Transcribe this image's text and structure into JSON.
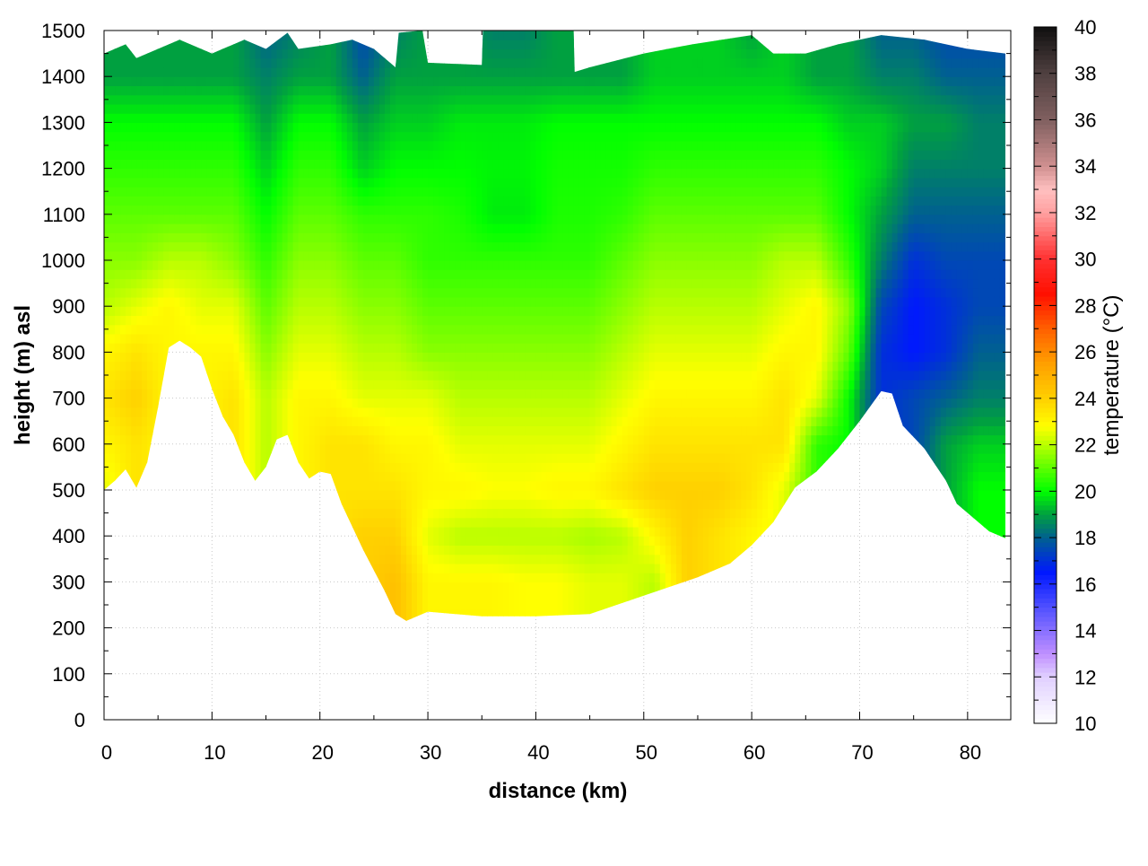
{
  "chart_data": {
    "type": "heatmap",
    "title": "",
    "xlabel": "distance (km)",
    "ylabel": "height (m) asl",
    "colorbar_label": "temperature (°C)",
    "xlim": [
      0,
      84
    ],
    "ylim": [
      0,
      1500
    ],
    "clim": [
      10,
      40
    ],
    "xticks": [
      0,
      10,
      20,
      30,
      40,
      50,
      60,
      70,
      80
    ],
    "yticks": [
      0,
      100,
      200,
      300,
      400,
      500,
      600,
      700,
      800,
      900,
      1000,
      1100,
      1200,
      1300,
      1400,
      1500
    ],
    "cticks": [
      10,
      12,
      14,
      16,
      18,
      20,
      22,
      24,
      26,
      28,
      30,
      32,
      34,
      36,
      38,
      40
    ],
    "grid": true,
    "colormap": [
      [
        10,
        "#ffffff"
      ],
      [
        12,
        "#e0d0ff"
      ],
      [
        13,
        "#c090ff"
      ],
      [
        15,
        "#5050ff"
      ],
      [
        16.5,
        "#0018ff"
      ],
      [
        18,
        "#006090"
      ],
      [
        19,
        "#00a040"
      ],
      [
        20,
        "#00ff00"
      ],
      [
        22,
        "#b8ff00"
      ],
      [
        22.8,
        "#ffff00"
      ],
      [
        24,
        "#ffd000"
      ],
      [
        25.5,
        "#ffa000"
      ],
      [
        27,
        "#ff6000"
      ],
      [
        28.5,
        "#ff1000"
      ],
      [
        30,
        "#ff3030"
      ],
      [
        32,
        "#ffa0a0"
      ],
      [
        33,
        "#ffc0c0"
      ],
      [
        34,
        "#d09090"
      ],
      [
        36,
        "#806060"
      ],
      [
        38,
        "#504040"
      ],
      [
        40,
        "#101010"
      ]
    ],
    "heights": [
      0,
      100,
      200,
      300,
      400,
      500,
      600,
      700,
      800,
      900,
      1000,
      1100,
      1200,
      1300,
      1400,
      1500
    ],
    "columns": [
      {
        "x": 0,
        "t": [
          null,
          null,
          null,
          null,
          null,
          22.5,
          23,
          23.5,
          23,
          22,
          21.5,
          21,
          20.5,
          20,
          19,
          null
        ]
      },
      {
        "x": 3,
        "t": [
          null,
          null,
          null,
          null,
          null,
          null,
          23.5,
          24,
          23.5,
          22.5,
          21.5,
          21,
          20.5,
          20,
          19,
          null
        ]
      },
      {
        "x": 6,
        "t": [
          null,
          null,
          null,
          null,
          null,
          null,
          null,
          null,
          null,
          23,
          22,
          21,
          20.5,
          20,
          19,
          null
        ]
      },
      {
        "x": 9,
        "t": [
          null,
          null,
          null,
          null,
          null,
          null,
          null,
          null,
          23,
          22.5,
          22,
          21,
          20.5,
          20,
          19,
          null
        ]
      },
      {
        "x": 12,
        "t": [
          null,
          null,
          null,
          null,
          null,
          null,
          null,
          23.5,
          23,
          22.5,
          21.5,
          21,
          20.5,
          20,
          19,
          null
        ]
      },
      {
        "x": 15,
        "t": [
          null,
          null,
          null,
          null,
          null,
          null,
          22,
          22,
          21.5,
          21,
          20.5,
          20,
          19.5,
          19,
          18.5,
          18
        ]
      },
      {
        "x": 18,
        "t": [
          null,
          null,
          null,
          null,
          null,
          null,
          23,
          23,
          22.5,
          22,
          21.5,
          21,
          20.5,
          20,
          19,
          18.5
        ]
      },
      {
        "x": 21,
        "t": [
          null,
          null,
          null,
          null,
          null,
          null,
          23.5,
          23,
          22.5,
          22,
          21.5,
          21,
          20.5,
          20,
          19,
          null
        ]
      },
      {
        "x": 24,
        "t": [
          null,
          null,
          null,
          null,
          24,
          23.5,
          23.5,
          22.5,
          22,
          21.5,
          21,
          20.5,
          19.5,
          19,
          18,
          17.5
        ]
      },
      {
        "x": 27,
        "t": [
          null,
          null,
          null,
          24.5,
          24,
          23.5,
          23,
          22.5,
          22,
          21.5,
          21,
          20.5,
          20,
          19.5,
          19,
          18.5
        ]
      },
      {
        "x": 30,
        "t": [
          null,
          null,
          null,
          23,
          22.5,
          23,
          23,
          22.5,
          21.5,
          21,
          20.5,
          20.5,
          20,
          19.5,
          19,
          null
        ]
      },
      {
        "x": 33,
        "t": [
          null,
          null,
          null,
          23,
          22,
          23,
          22.5,
          22,
          21.5,
          21,
          20.5,
          20.3,
          20,
          19.8,
          19,
          null
        ]
      },
      {
        "x": 36,
        "t": [
          null,
          null,
          null,
          23,
          22,
          22.8,
          22.5,
          22,
          21.5,
          21,
          20.5,
          19.8,
          19.9,
          19.8,
          19,
          18.5
        ]
      },
      {
        "x": 39,
        "t": [
          null,
          null,
          null,
          22.8,
          22,
          22.8,
          22.5,
          22,
          21.5,
          21,
          20.5,
          19.8,
          19.9,
          19.8,
          19,
          18.5
        ]
      },
      {
        "x": 42,
        "t": [
          null,
          null,
          null,
          22.8,
          22,
          23,
          22.5,
          22,
          21.5,
          21,
          20.5,
          20.3,
          20.2,
          20,
          19,
          null
        ]
      },
      {
        "x": 45,
        "t": [
          null,
          null,
          null,
          22.5,
          21.8,
          23,
          22.5,
          22,
          21.5,
          21,
          20.5,
          20.3,
          20.2,
          20,
          19,
          null
        ]
      },
      {
        "x": 48,
        "t": [
          null,
          null,
          null,
          22.5,
          22,
          23.5,
          23,
          22.5,
          22,
          21.5,
          21,
          20.5,
          20.2,
          20,
          19,
          null
        ]
      },
      {
        "x": 51,
        "t": [
          null,
          null,
          null,
          22,
          23,
          24,
          23.5,
          23,
          22.5,
          22,
          21.5,
          21,
          20.5,
          20,
          19.5,
          null
        ]
      },
      {
        "x": 54,
        "t": [
          null,
          null,
          null,
          null,
          24,
          24,
          23.5,
          23,
          22.5,
          22,
          21.5,
          21,
          20.5,
          20,
          19.5,
          null
        ]
      },
      {
        "x": 57,
        "t": [
          null,
          null,
          null,
          null,
          23.5,
          24,
          23.5,
          23,
          22.5,
          22,
          21.5,
          21,
          20.5,
          20,
          19.5,
          null
        ]
      },
      {
        "x": 60,
        "t": [
          null,
          null,
          null,
          null,
          23,
          23.5,
          23.5,
          23,
          22.5,
          22,
          21.5,
          21,
          20.5,
          20,
          19.5,
          19
        ]
      },
      {
        "x": 63,
        "t": [
          null,
          null,
          null,
          null,
          null,
          22.5,
          23.5,
          23.5,
          23,
          22.5,
          22,
          21,
          20.5,
          20,
          19.5,
          null
        ]
      },
      {
        "x": 66,
        "t": [
          null,
          null,
          null,
          null,
          null,
          null,
          20.5,
          22.5,
          23,
          23,
          22,
          21,
          20.5,
          20,
          19,
          null
        ]
      },
      {
        "x": 69,
        "t": [
          null,
          null,
          null,
          null,
          null,
          null,
          null,
          20,
          21,
          21.5,
          20.5,
          20,
          20,
          19.5,
          19,
          null
        ]
      },
      {
        "x": 72,
        "t": [
          null,
          null,
          null,
          null,
          null,
          null,
          null,
          null,
          17,
          17.5,
          18.5,
          19,
          19.5,
          19.5,
          18.5,
          18
        ]
      },
      {
        "x": 75,
        "t": [
          null,
          null,
          null,
          null,
          null,
          null,
          null,
          17.5,
          16.5,
          16.5,
          17,
          18,
          18.5,
          19,
          18.5,
          18
        ]
      },
      {
        "x": 78,
        "t": [
          null,
          null,
          null,
          null,
          null,
          null,
          19,
          18,
          17,
          17,
          17.5,
          18,
          18.5,
          19,
          18,
          17.5
        ]
      },
      {
        "x": 81,
        "t": [
          null,
          null,
          null,
          null,
          null,
          20,
          19.5,
          18.5,
          18,
          17.5,
          17.5,
          18,
          18.5,
          18.5,
          18,
          17.5
        ]
      },
      {
        "x": 84,
        "t": [
          null,
          null,
          null,
          null,
          null,
          20,
          19.5,
          18.5,
          18,
          17.5,
          17.5,
          18,
          18.5,
          18.5,
          18,
          17.5
        ]
      }
    ],
    "terrain": [
      [
        0,
        500
      ],
      [
        1,
        520
      ],
      [
        2,
        545
      ],
      [
        3,
        505
      ],
      [
        4,
        560
      ],
      [
        5,
        680
      ],
      [
        6,
        810
      ],
      [
        7,
        825
      ],
      [
        8,
        810
      ],
      [
        9,
        790
      ],
      [
        10,
        720
      ],
      [
        11,
        660
      ],
      [
        12,
        620
      ],
      [
        13,
        560
      ],
      [
        14,
        520
      ],
      [
        15,
        550
      ],
      [
        16,
        610
      ],
      [
        17,
        620
      ],
      [
        18,
        560
      ],
      [
        19,
        525
      ],
      [
        20,
        540
      ],
      [
        21,
        535
      ],
      [
        22,
        470
      ],
      [
        24,
        370
      ],
      [
        26,
        280
      ],
      [
        27,
        230
      ],
      [
        28,
        215
      ],
      [
        30,
        235
      ],
      [
        35,
        225
      ],
      [
        40,
        225
      ],
      [
        45,
        230
      ],
      [
        50,
        270
      ],
      [
        55,
        310
      ],
      [
        58,
        340
      ],
      [
        60,
        380
      ],
      [
        62,
        430
      ],
      [
        64,
        505
      ],
      [
        66,
        540
      ],
      [
        68,
        590
      ],
      [
        70,
        650
      ],
      [
        72,
        715
      ],
      [
        73,
        710
      ],
      [
        74,
        640
      ],
      [
        76,
        590
      ],
      [
        78,
        520
      ],
      [
        79,
        470
      ],
      [
        81,
        430
      ],
      [
        82,
        410
      ],
      [
        83.5,
        395
      ]
    ],
    "data_top": [
      [
        0,
        1450
      ],
      [
        2,
        1470
      ],
      [
        3,
        1440
      ],
      [
        5,
        1460
      ],
      [
        7,
        1480
      ],
      [
        10,
        1450
      ],
      [
        13,
        1480
      ],
      [
        15,
        1460
      ],
      [
        17,
        1495
      ],
      [
        18,
        1460
      ],
      [
        21,
        1470
      ],
      [
        23,
        1480
      ],
      [
        25,
        1460
      ],
      [
        27,
        1420
      ],
      [
        27.3,
        1495
      ],
      [
        29.5,
        1500
      ],
      [
        30,
        1430
      ],
      [
        35,
        1425
      ],
      [
        35.1,
        1500
      ],
      [
        43.5,
        1500
      ],
      [
        43.6,
        1410
      ],
      [
        45,
        1420
      ],
      [
        50,
        1450
      ],
      [
        54.5,
        1470
      ],
      [
        60,
        1490
      ],
      [
        62,
        1450
      ],
      [
        65,
        1450
      ],
      [
        68,
        1470
      ],
      [
        72,
        1490
      ],
      [
        76,
        1480
      ],
      [
        80,
        1460
      ],
      [
        83.5,
        1450
      ]
    ]
  }
}
